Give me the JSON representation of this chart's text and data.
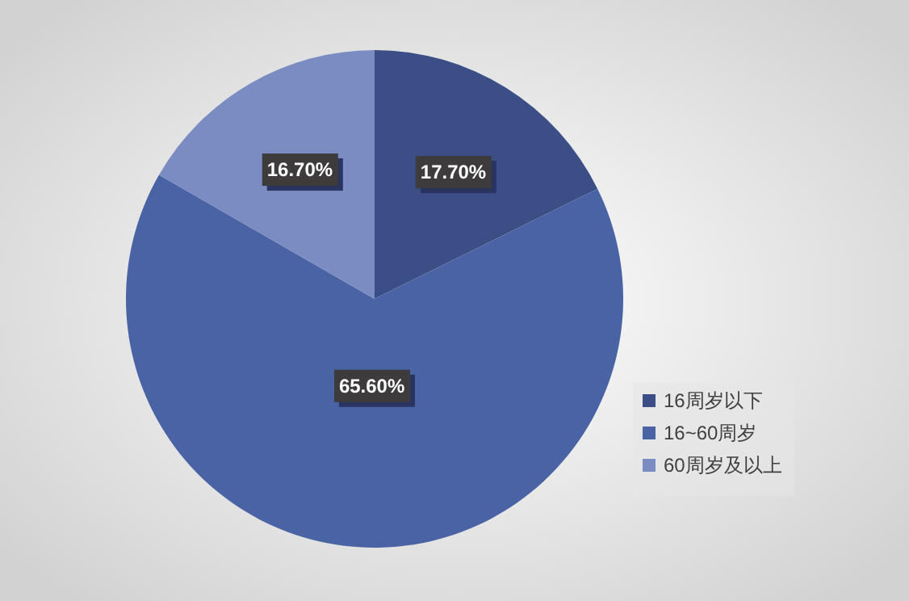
{
  "chart_data": {
    "type": "pie",
    "categories": [
      "16周岁以下",
      "16~60周岁",
      "60周岁及以上"
    ],
    "values": [
      17.7,
      65.6,
      16.7
    ],
    "colors": [
      "#3b4f86",
      "#4a63a4",
      "#7b8cc2"
    ],
    "value_labels": [
      "17.70%",
      "65.60%",
      "16.70%"
    ],
    "legend": "right"
  }
}
